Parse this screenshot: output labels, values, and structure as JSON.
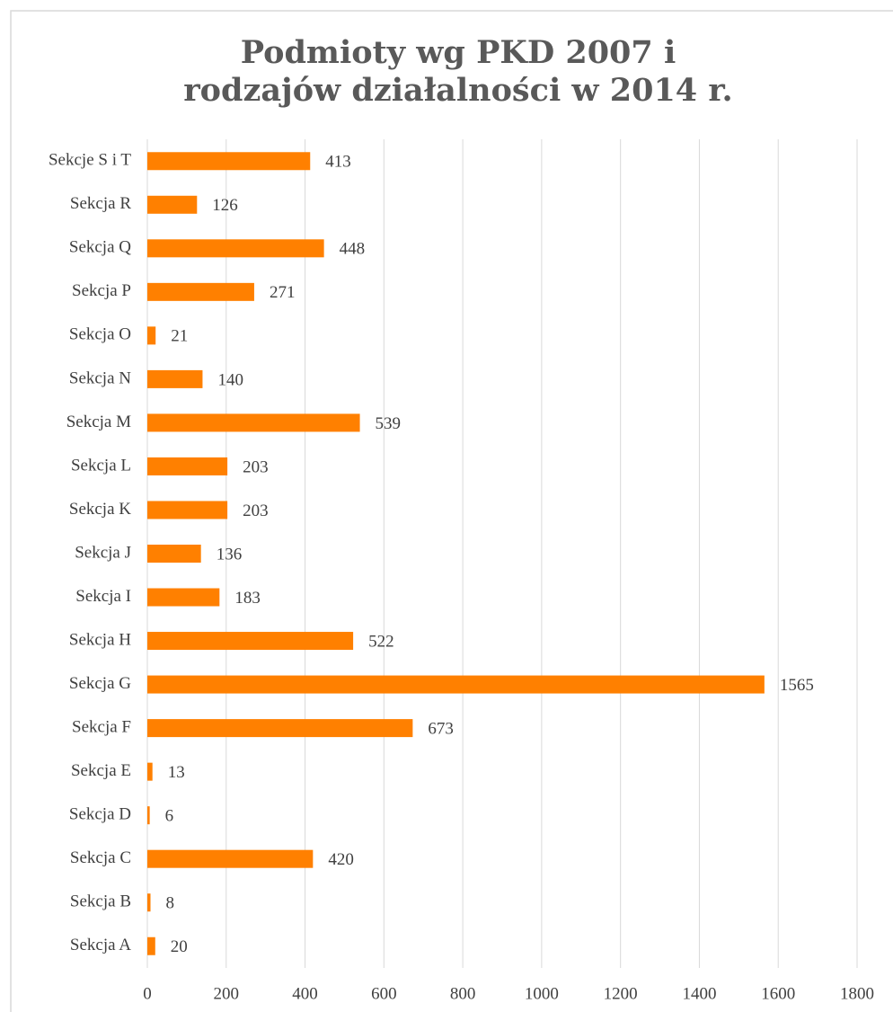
{
  "chart_data": {
    "type": "bar",
    "orientation": "horizontal",
    "title": "Podmioty wg PKD 2007 i rodzajów działalności w 2014 r.",
    "categories": [
      "Sekcje S i T",
      "Sekcja R",
      "Sekcja Q",
      "Sekcja P",
      "Sekcja O",
      "Sekcja N",
      "Sekcja M",
      "Sekcja L",
      "Sekcja K",
      "Sekcja J",
      "Sekcja I",
      "Sekcja H",
      "Sekcja G",
      "Sekcja F",
      "Sekcja E",
      "Sekcja D",
      "Sekcja C",
      "Sekcja B",
      "Sekcja A"
    ],
    "values": [
      413,
      126,
      448,
      271,
      21,
      140,
      539,
      203,
      203,
      136,
      183,
      522,
      1565,
      673,
      13,
      6,
      420,
      8,
      20
    ],
    "color": "#ff8000",
    "xlim": [
      0,
      1800
    ],
    "xticks": [
      0,
      200,
      400,
      600,
      800,
      1000,
      1200,
      1400,
      1600,
      1800
    ],
    "grid": true
  }
}
